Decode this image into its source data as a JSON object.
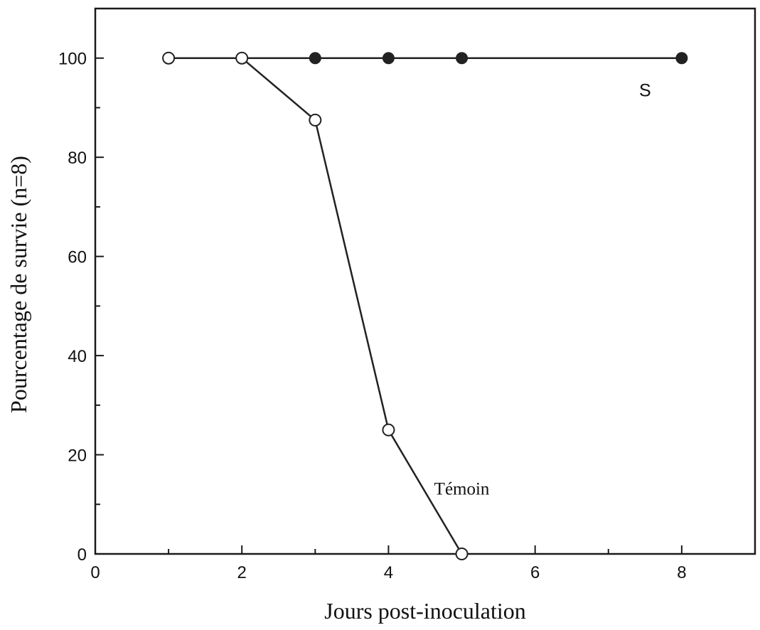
{
  "chart_data": {
    "type": "line",
    "title": "",
    "xlabel": "Jours post-inoculation",
    "ylabel": "Pourcentage de survie (n=8)",
    "xlim": [
      0,
      9
    ],
    "ylim": [
      0,
      110
    ],
    "x_ticks": [
      0,
      2,
      4,
      6,
      8
    ],
    "y_ticks": [
      0,
      20,
      40,
      60,
      80,
      100
    ],
    "grid": false,
    "series": [
      {
        "name": "Témoin",
        "x": [
          1,
          2,
          3,
          4,
          5
        ],
        "y": [
          100,
          100,
          87.5,
          25,
          0
        ],
        "marker": "open-circle",
        "color": "#222222"
      },
      {
        "name": "S",
        "x": [
          2,
          3,
          4,
          5,
          8
        ],
        "y": [
          100,
          100,
          100,
          100,
          100
        ],
        "marker": "filled-circle",
        "color": "#222222"
      }
    ]
  }
}
